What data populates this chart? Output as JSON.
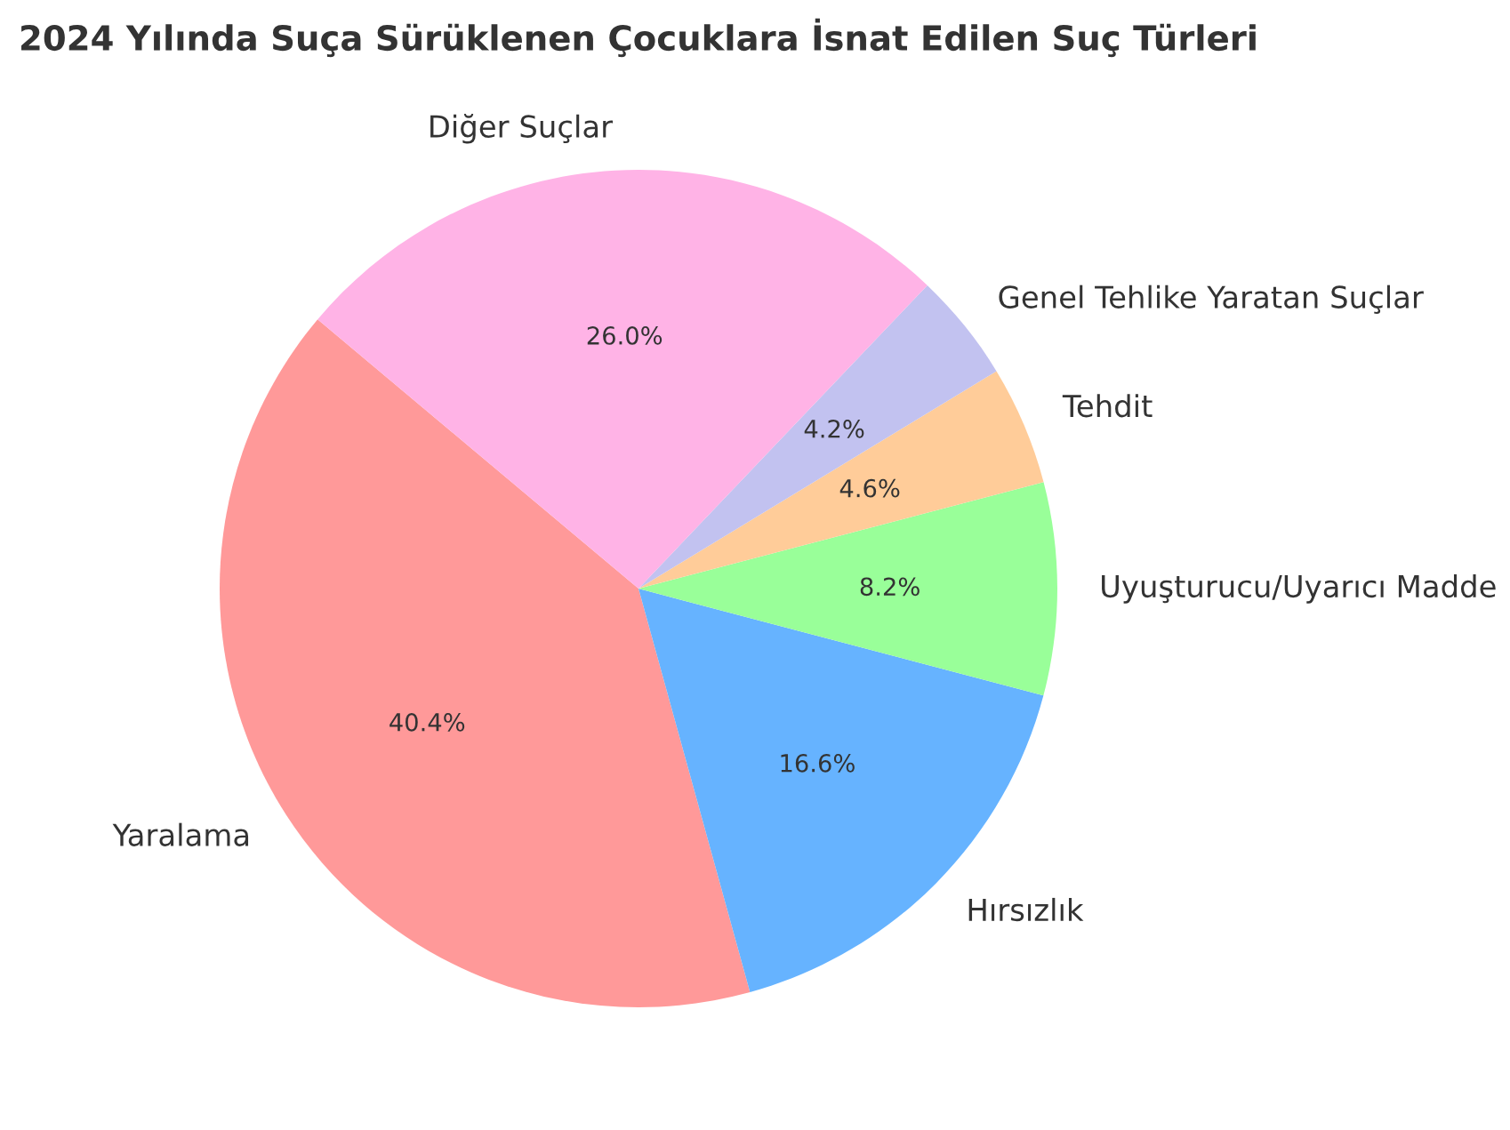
{
  "chart_data": {
    "type": "pie",
    "title": "2024 Yılında Suça Sürüklenen Çocuklara İsnat Edilen Suç Türleri",
    "categories": [
      "Yaralama",
      "Hırsızlık",
      "Uyuşturucu/Uyarıcı Madde",
      "Tehdit",
      "Genel Tehlike Yaratan Suçlar",
      "Diğer Suçlar"
    ],
    "values": [
      40.4,
      16.6,
      8.2,
      4.6,
      4.2,
      26.0
    ],
    "value_labels": [
      "40.4%",
      "16.6%",
      "8.2%",
      "4.6%",
      "4.2%",
      "26.0%"
    ],
    "colors": [
      "#ff9999",
      "#66b3ff",
      "#99ff99",
      "#ffcc99",
      "#c2c2f0",
      "#ffb3e6"
    ]
  }
}
